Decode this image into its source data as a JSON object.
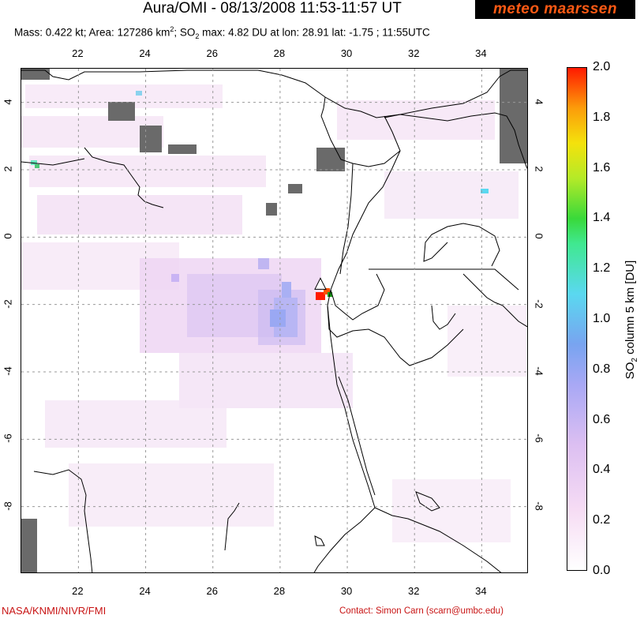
{
  "header": {
    "title": "Aura/OMI - 08/13/2008 11:53-11:57 UT",
    "logo_text": "meteo maarssen",
    "subtitle": {
      "mass": "Mass: 0.422 kt; Area: 127286 km",
      "so2_label": "; SO",
      "so2_rest": " max: 4.82 DU at lon: 28.91 lat: -1.75 ; 11:55UTC"
    }
  },
  "map": {
    "longitude_ticks": [
      "22",
      "24",
      "26",
      "28",
      "30",
      "32",
      "34"
    ],
    "longitude_values": [
      22,
      24,
      26,
      28,
      30,
      32,
      34
    ],
    "latitude_ticks": [
      "4",
      "2",
      "0",
      "-2",
      "-4",
      "-6",
      "-8"
    ],
    "latitude_values": [
      4,
      2,
      0,
      -2,
      -4,
      -6,
      -8
    ],
    "lon_range": [
      20.3,
      35.4
    ],
    "lat_range": [
      -10.0,
      5.0
    ],
    "volcano_marker": {
      "lon": 29.2,
      "lat": -1.5,
      "icon": "triangle-icon"
    },
    "max_location": {
      "lon": 28.91,
      "lat": -1.75
    }
  },
  "colorbar": {
    "ticks": [
      "2.0",
      "1.8",
      "1.6",
      "1.4",
      "1.2",
      "1.0",
      "0.8",
      "0.6",
      "0.4",
      "0.2",
      "0.0"
    ],
    "tick_values": [
      2.0,
      1.8,
      1.6,
      1.4,
      1.2,
      1.0,
      0.8,
      0.6,
      0.4,
      0.2,
      0.0
    ],
    "range": [
      0.0,
      2.0
    ],
    "label_prefix": "SO",
    "label_sub": "2",
    "label_rest": " column 5 km [DU]"
  },
  "footer": {
    "credit": "NASA/KNMI/NIVR/FMI",
    "contact": "Contact: Simon Carn (scarn@umbc.edu)"
  },
  "colors": {
    "background_plume": "#e8cbee",
    "missing_data": "#6a6a6a",
    "max_so2": "#ff1a00",
    "credit_text": "#c81414"
  }
}
